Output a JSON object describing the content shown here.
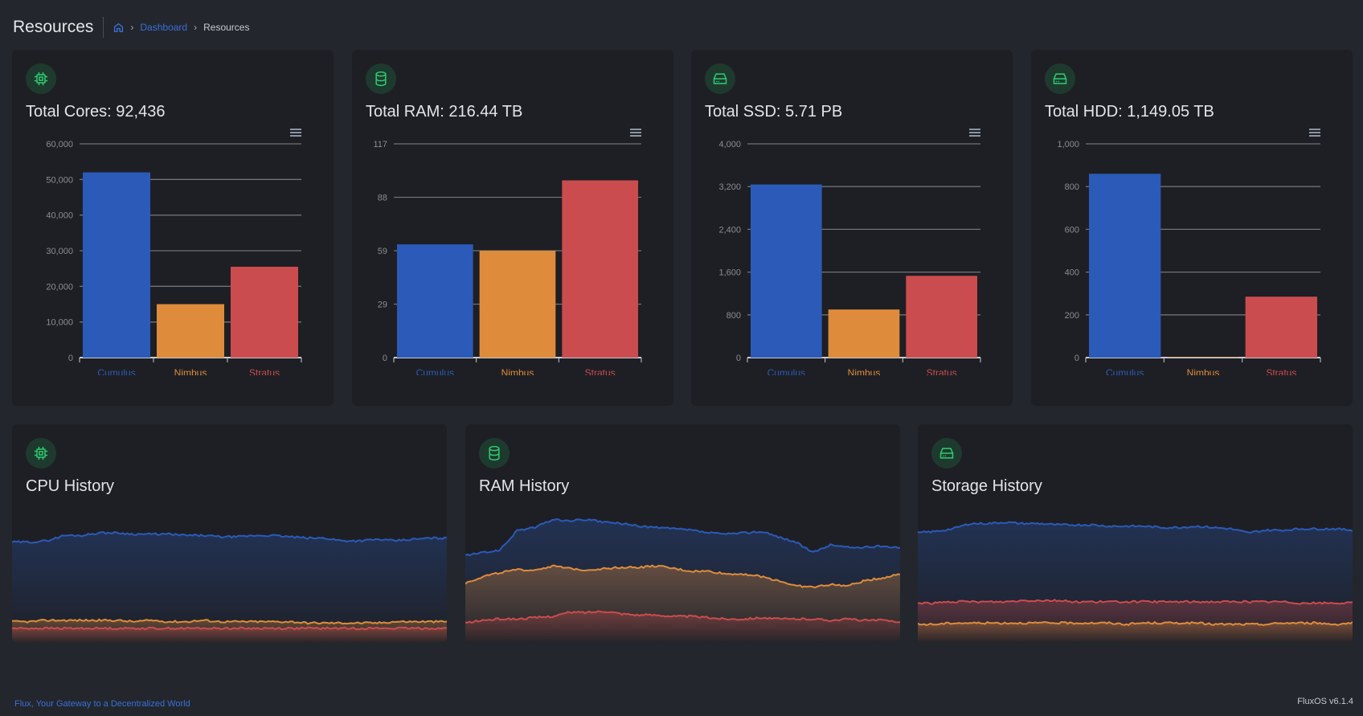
{
  "header": {
    "title": "Resources",
    "breadcrumb": {
      "home_icon": "home-icon",
      "dashboard": "Dashboard",
      "current": "Resources"
    }
  },
  "colors": {
    "cumulus": "#2b5ab8",
    "nimbus": "#de8c3c",
    "stratus": "#cb4c4e",
    "icon_green": "#2ecc71"
  },
  "chart_data": [
    {
      "type": "bar",
      "title": "Total Cores: 92,436",
      "icon": "cpu-icon",
      "categories": [
        "Cumulus",
        "Nimbus",
        "Stratus"
      ],
      "values": [
        52000,
        15000,
        25500
      ],
      "ylim": [
        0,
        60000
      ],
      "yticks": [
        "0",
        "10,000",
        "20,000",
        "30,000",
        "40,000",
        "50,000",
        "60,000"
      ],
      "grid": true
    },
    {
      "type": "bar",
      "title": "Total RAM: 216.44 TB",
      "icon": "database-icon",
      "categories": [
        "Cumulus",
        "Nimbus",
        "Stratus"
      ],
      "values": [
        62,
        58.5,
        97
      ],
      "ylim": [
        0,
        117
      ],
      "yticks": [
        "0",
        "29",
        "59",
        "88",
        "117"
      ],
      "grid": true
    },
    {
      "type": "bar",
      "title": "Total SSD: 5.71 PB",
      "icon": "drive-icon",
      "categories": [
        "Cumulus",
        "Nimbus",
        "Stratus"
      ],
      "values": [
        3240,
        900,
        1530
      ],
      "ylim": [
        0,
        4000
      ],
      "yticks": [
        "0",
        "800",
        "1,600",
        "2,400",
        "3,200",
        "4,000"
      ],
      "grid": true
    },
    {
      "type": "bar",
      "title": "Total HDD: 1,149.05 TB",
      "icon": "drive-icon",
      "categories": [
        "Cumulus",
        "Nimbus",
        "Stratus"
      ],
      "values": [
        860,
        2,
        285
      ],
      "ylim": [
        0,
        1000
      ],
      "yticks": [
        "0",
        "200",
        "400",
        "600",
        "800",
        "1,000"
      ],
      "grid": true
    },
    {
      "type": "area",
      "title": "CPU History",
      "icon": "cpu-icon",
      "ylim": [
        0,
        1
      ],
      "series": [
        {
          "color": "#2b5ab8",
          "values": [
            0.76,
            0.76,
            0.77,
            0.81,
            0.81,
            0.83,
            0.83,
            0.82,
            0.82,
            0.82,
            0.81,
            0.81,
            0.8,
            0.8,
            0.81,
            0.81,
            0.8,
            0.79,
            0.79,
            0.77,
            0.77,
            0.78,
            0.77,
            0.78,
            0.79,
            0.79
          ]
        },
        {
          "color": "#de8c3c",
          "values": [
            0.16,
            0.16,
            0.17,
            0.17,
            0.17,
            0.17,
            0.17,
            0.16,
            0.17,
            0.16,
            0.16,
            0.17,
            0.16,
            0.16,
            0.16,
            0.16,
            0.16,
            0.15,
            0.15,
            0.15,
            0.15,
            0.15,
            0.16,
            0.16,
            0.16,
            0.16
          ]
        },
        {
          "color": "#cb4c4e",
          "values": [
            0.11,
            0.11,
            0.11,
            0.11,
            0.11,
            0.11,
            0.11,
            0.11,
            0.11,
            0.11,
            0.11,
            0.11,
            0.11,
            0.11,
            0.11,
            0.11,
            0.11,
            0.11,
            0.11,
            0.11,
            0.11,
            0.11,
            0.11,
            0.11,
            0.11,
            0.11
          ]
        }
      ]
    },
    {
      "type": "area",
      "title": "RAM History",
      "icon": "database-icon",
      "ylim": [
        0,
        1
      ],
      "series": [
        {
          "color": "#2b5ab8",
          "values": [
            0.66,
            0.68,
            0.7,
            0.85,
            0.87,
            0.93,
            0.92,
            0.93,
            0.91,
            0.9,
            0.88,
            0.87,
            0.86,
            0.85,
            0.83,
            0.82,
            0.83,
            0.84,
            0.8,
            0.76,
            0.68,
            0.74,
            0.72,
            0.72,
            0.73,
            0.72
          ]
        },
        {
          "color": "#de8c3c",
          "values": [
            0.45,
            0.5,
            0.53,
            0.55,
            0.55,
            0.58,
            0.56,
            0.55,
            0.56,
            0.57,
            0.57,
            0.58,
            0.56,
            0.54,
            0.54,
            0.52,
            0.52,
            0.5,
            0.47,
            0.43,
            0.42,
            0.44,
            0.43,
            0.47,
            0.49,
            0.52
          ]
        },
        {
          "color": "#cb4c4e",
          "values": [
            0.15,
            0.17,
            0.18,
            0.18,
            0.19,
            0.2,
            0.23,
            0.23,
            0.24,
            0.22,
            0.21,
            0.21,
            0.2,
            0.2,
            0.19,
            0.18,
            0.18,
            0.19,
            0.18,
            0.18,
            0.18,
            0.17,
            0.18,
            0.17,
            0.17,
            0.16
          ]
        }
      ]
    },
    {
      "type": "area",
      "title": "Storage History",
      "icon": "drive-icon",
      "ylim": [
        0,
        1
      ],
      "series": [
        {
          "color": "#2b5ab8",
          "values": [
            0.83,
            0.84,
            0.86,
            0.9,
            0.9,
            0.91,
            0.9,
            0.9,
            0.89,
            0.89,
            0.89,
            0.88,
            0.88,
            0.88,
            0.87,
            0.87,
            0.88,
            0.87,
            0.86,
            0.83,
            0.85,
            0.85,
            0.86,
            0.86,
            0.86,
            0.85
          ]
        },
        {
          "color": "#cb4c4e",
          "values": [
            0.3,
            0.3,
            0.31,
            0.31,
            0.31,
            0.31,
            0.32,
            0.32,
            0.32,
            0.31,
            0.31,
            0.31,
            0.31,
            0.31,
            0.31,
            0.31,
            0.31,
            0.31,
            0.31,
            0.31,
            0.31,
            0.31,
            0.3,
            0.3,
            0.3,
            0.3
          ]
        },
        {
          "color": "#de8c3c",
          "values": [
            0.14,
            0.14,
            0.15,
            0.15,
            0.15,
            0.15,
            0.15,
            0.15,
            0.15,
            0.15,
            0.15,
            0.15,
            0.14,
            0.15,
            0.15,
            0.15,
            0.15,
            0.14,
            0.14,
            0.14,
            0.14,
            0.15,
            0.15,
            0.15,
            0.14,
            0.15
          ]
        }
      ]
    }
  ],
  "footer": {
    "tagline": "Flux, Your Gateway to a Decentralized World",
    "version": "FluxOS v6.1.4"
  }
}
